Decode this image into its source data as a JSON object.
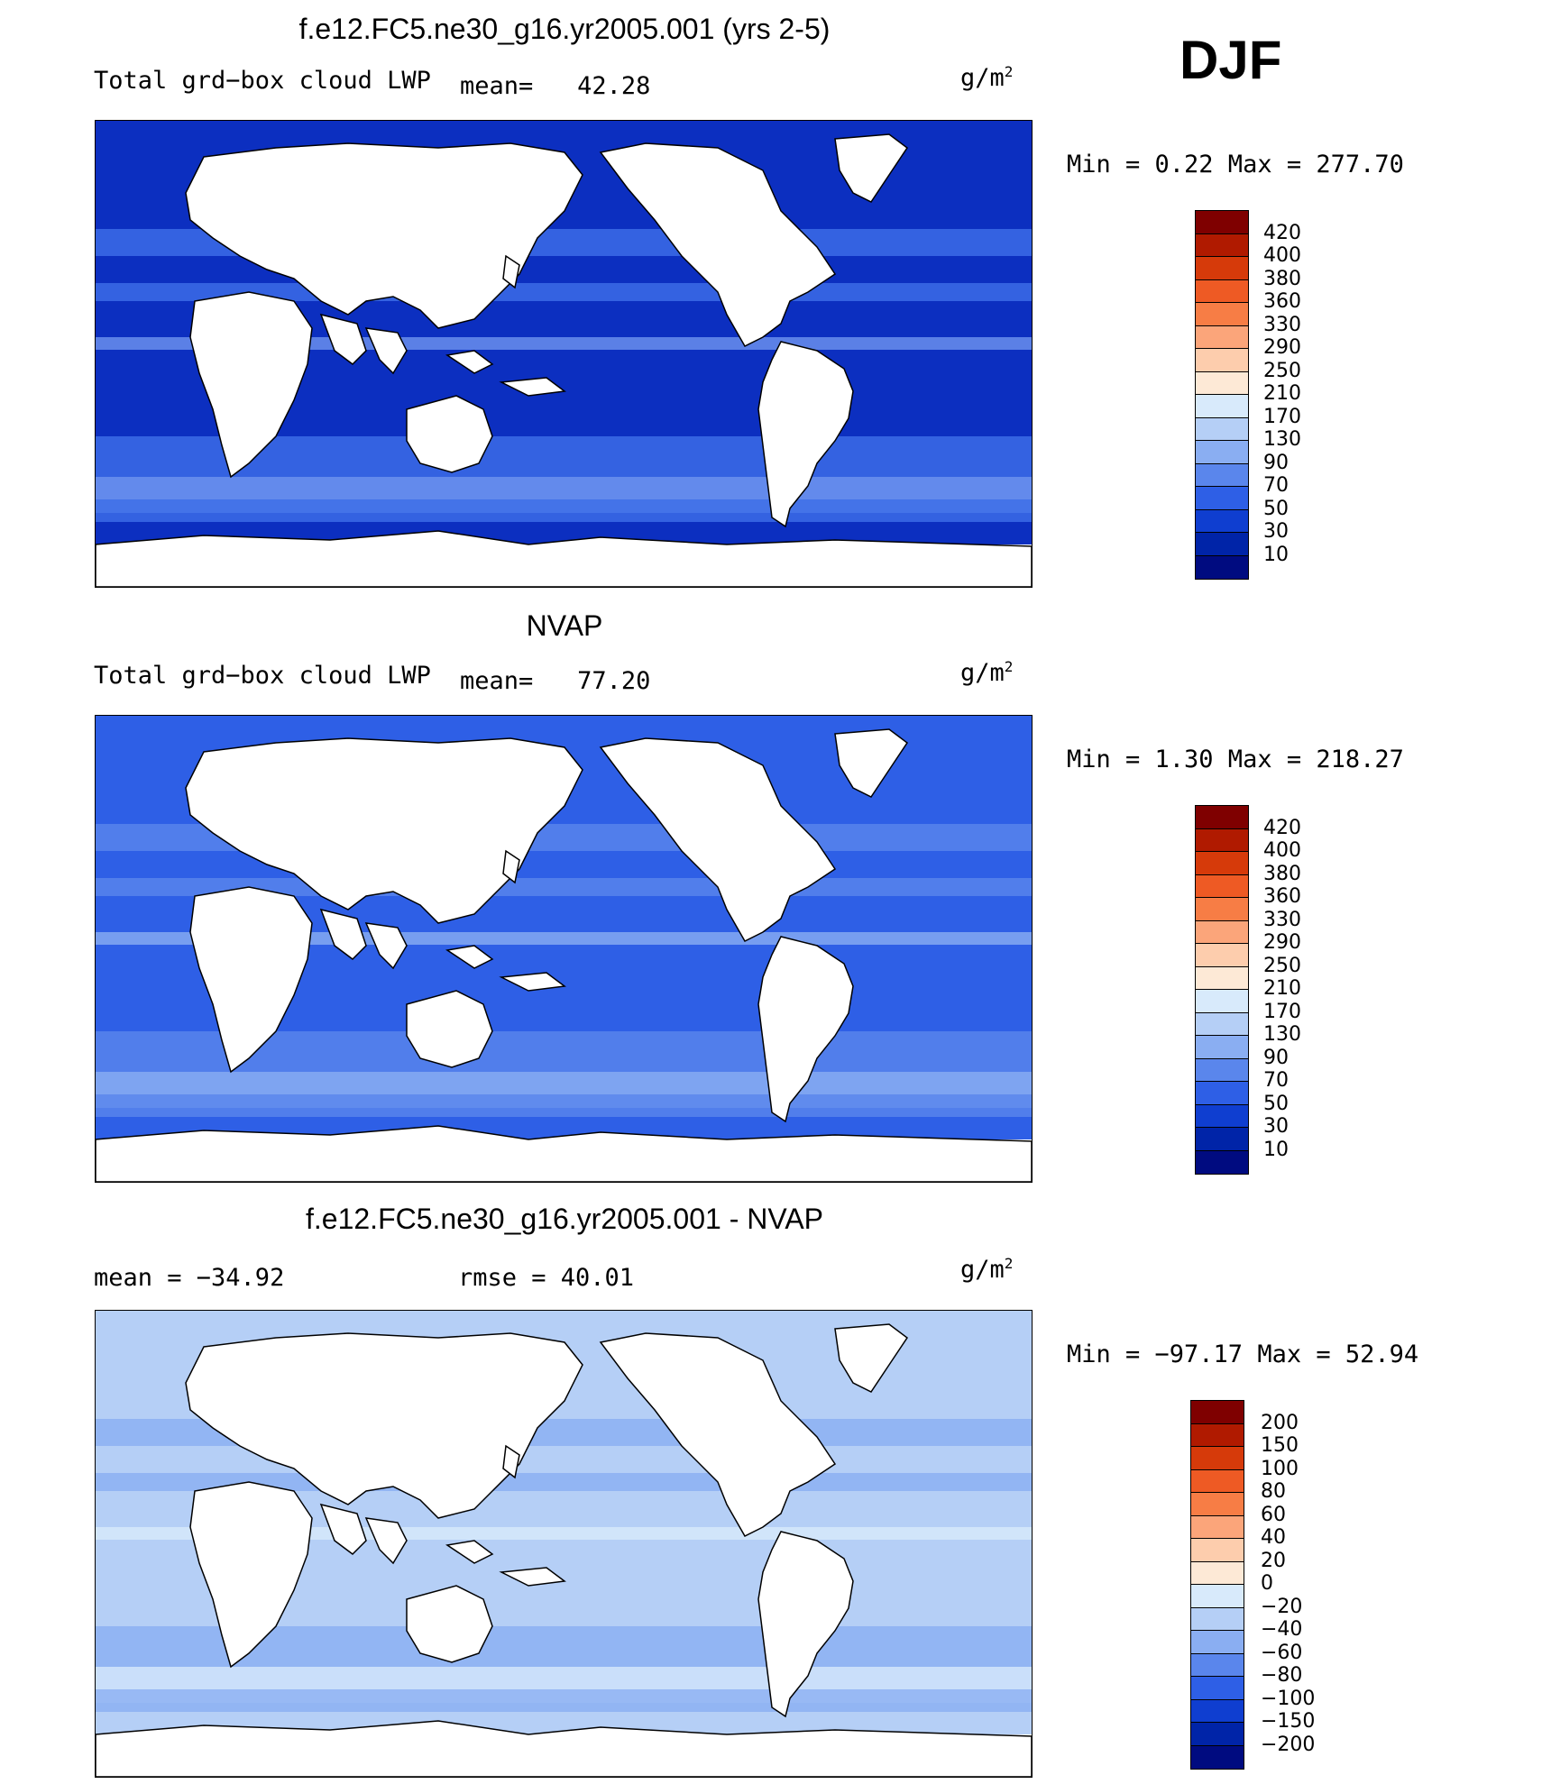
{
  "season": "DJF",
  "units_base": "g/m",
  "units_exp": "2",
  "panels": [
    {
      "title": "f.e12.FC5.ne30_g16.yr2005.001 (yrs 2-5)",
      "left_label": "Total grd−box cloud LWP",
      "mean_label": "mean=",
      "mean_value": "42.28",
      "minmax": "Min =    0.22 Max = 277.70",
      "colorbar": {
        "ticks": [
          "420",
          "400",
          "380",
          "360",
          "330",
          "290",
          "250",
          "210",
          "170",
          "130",
          "90",
          "70",
          "50",
          "30",
          "10"
        ],
        "colors": [
          "#7f0000",
          "#b01a00",
          "#d63a0a",
          "#ee5a24",
          "#f77d45",
          "#fba57a",
          "#fdcdad",
          "#fde9d6",
          "#d8eafb",
          "#b5cff6",
          "#8aaef2",
          "#5a86ec",
          "#2e5fe6",
          "#0f3ed0",
          "#0024a8",
          "#000b80"
        ]
      },
      "field": {
        "base": "#0c2fc0",
        "light": "#3e6fe8",
        "lighter": "#6f95ef"
      }
    },
    {
      "title": "NVAP",
      "left_label": "Total grd−box cloud LWP",
      "mean_label": "mean=",
      "mean_value": "77.20",
      "minmax": "Min =    1.30 Max = 218.27",
      "colorbar": {
        "ticks": [
          "420",
          "400",
          "380",
          "360",
          "330",
          "290",
          "250",
          "210",
          "170",
          "130",
          "90",
          "70",
          "50",
          "30",
          "10"
        ],
        "colors": [
          "#7f0000",
          "#b01a00",
          "#d63a0a",
          "#ee5a24",
          "#f77d45",
          "#fba57a",
          "#fdcdad",
          "#fde9d6",
          "#d8eafb",
          "#b5cff6",
          "#8aaef2",
          "#5a86ec",
          "#2e5fe6",
          "#0f3ed0",
          "#0024a8",
          "#000b80"
        ]
      },
      "field": {
        "base": "#2e5fe6",
        "light": "#5a86ec",
        "lighter": "#8aaef2"
      }
    },
    {
      "title": "f.e12.FC5.ne30_g16.yr2005.001 - NVAP",
      "left_label": "mean = −34.92",
      "rmse_label": "rmse =   40.01",
      "minmax": "Min = −97.17 Max =  52.94",
      "colorbar": {
        "ticks": [
          "200",
          "150",
          "100",
          "80",
          "60",
          "40",
          "20",
          "0",
          "−20",
          "−40",
          "−60",
          "−80",
          "−100",
          "−150",
          "−200"
        ],
        "colors": [
          "#7f0000",
          "#b01a00",
          "#d63a0a",
          "#ee5a24",
          "#f77d45",
          "#fba57a",
          "#fdcdad",
          "#fde9d6",
          "#d8eafb",
          "#b5cff6",
          "#8aaef2",
          "#5a86ec",
          "#2e5fe6",
          "#0f3ed0",
          "#0024a8",
          "#000b80"
        ]
      },
      "field": {
        "base": "#b5cff6",
        "light": "#8aaef2",
        "lighter": "#d8eafb"
      }
    }
  ]
}
